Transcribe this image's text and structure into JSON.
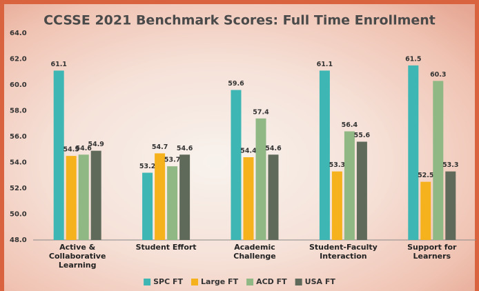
{
  "chart_data": {
    "type": "bar",
    "title": "CCSSE 2021 Benchmark Scores: Full Time Enrollment",
    "categories": [
      "Active & Collaborative Learning",
      "Student Effort",
      "Academic Challenge",
      "Student-Faculty Interaction",
      "Support for Learners"
    ],
    "series": [
      {
        "name": "SPC FT",
        "color": "#3db6b4",
        "values": [
          61.1,
          53.2,
          59.6,
          61.1,
          61.5
        ]
      },
      {
        "name": "Large FT",
        "color": "#f6b21c",
        "values": [
          54.5,
          54.7,
          54.4,
          53.3,
          52.5
        ]
      },
      {
        "name": "ACD FT",
        "color": "#8fb884",
        "values": [
          54.6,
          53.7,
          57.4,
          56.4,
          60.3
        ]
      },
      {
        "name": "USA FT",
        "color": "#5f6a5a",
        "values": [
          54.9,
          54.6,
          54.6,
          55.6,
          53.3
        ]
      }
    ],
    "ylim": [
      48,
      64
    ],
    "yticks": [
      {
        "value": 48,
        "label": "48.0"
      },
      {
        "value": 50,
        "label": "50.0"
      },
      {
        "value": 52,
        "label": "52.0"
      },
      {
        "value": 54,
        "label": "54.0"
      },
      {
        "value": 56,
        "label": "56.0"
      },
      {
        "value": 58,
        "label": "58.0"
      },
      {
        "value": 60,
        "label": "60.0"
      },
      {
        "value": 62,
        "label": "62.0"
      },
      {
        "value": 64,
        "label": "64.0"
      }
    ],
    "legend": "bottom"
  }
}
